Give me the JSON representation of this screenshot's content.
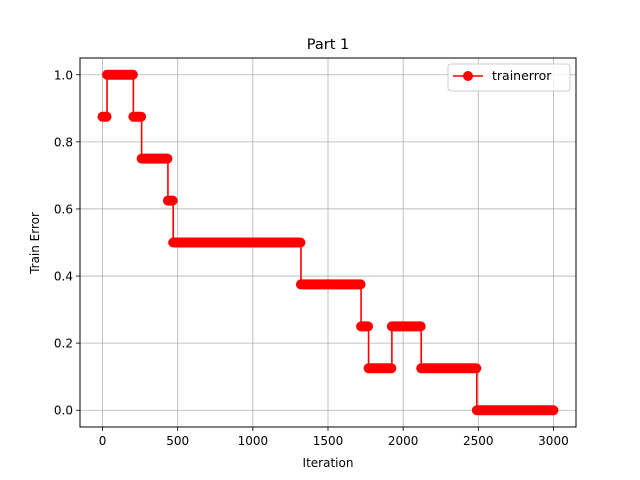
{
  "chart_data": {
    "type": "line",
    "title": "Part 1",
    "xlabel": "Iteration",
    "ylabel": "Train Error",
    "xlim": [
      -150,
      3150
    ],
    "ylim": [
      -0.05,
      1.05
    ],
    "xticks": [
      0,
      500,
      1000,
      1500,
      2000,
      2500,
      3000
    ],
    "yticks": [
      0.0,
      0.2,
      0.4,
      0.6,
      0.8,
      1.0
    ],
    "xtick_labels": [
      "0",
      "500",
      "1000",
      "1500",
      "2000",
      "2500",
      "3000"
    ],
    "ytick_labels": [
      "0.0",
      "0.2",
      "0.4",
      "0.6",
      "0.8",
      "1.0"
    ],
    "grid": true,
    "legend_position": "top-right",
    "series": [
      {
        "name": "trainerror",
        "color": "#ff0000",
        "marker": "circle",
        "step_points": [
          [
            0,
            0.875
          ],
          [
            30,
            1.0
          ],
          [
            205,
            0.875
          ],
          [
            260,
            0.75
          ],
          [
            435,
            0.625
          ],
          [
            470,
            0.5
          ],
          [
            1320,
            0.375
          ],
          [
            1720,
            0.25
          ],
          [
            1770,
            0.125
          ],
          [
            1925,
            0.25
          ],
          [
            2120,
            0.125
          ],
          [
            2490,
            0.0
          ],
          [
            3000,
            0.0
          ]
        ]
      }
    ]
  }
}
